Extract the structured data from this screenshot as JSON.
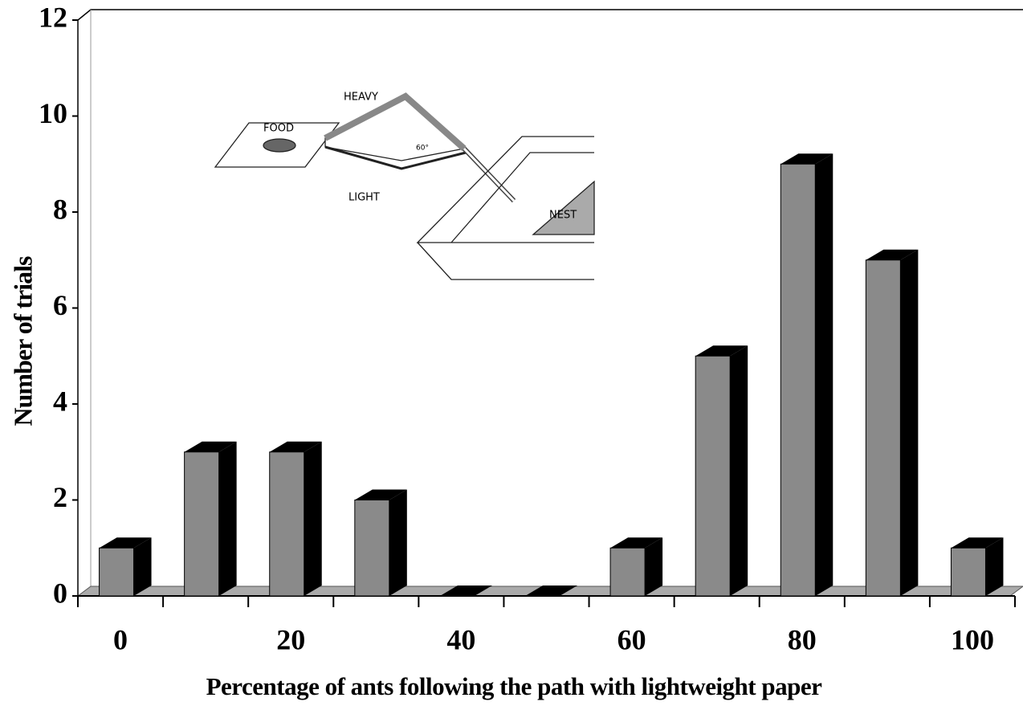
{
  "chart_data": {
    "type": "bar3d",
    "x_label": "Percentage of ants following the path with lightweight paper",
    "y_label": "Number of trials",
    "categories": [
      "0",
      null,
      "20",
      null,
      "40",
      null,
      "60",
      null,
      "80",
      null,
      "100"
    ],
    "values": [
      1,
      3,
      3,
      2,
      0,
      0,
      1,
      5,
      9,
      7,
      1
    ],
    "color": "#8a8a8a",
    "ylim": [
      0,
      12
    ],
    "yticks": [
      0,
      2,
      4,
      6,
      8,
      10,
      12
    ],
    "inset_labels": {
      "food": "FOOD",
      "heavy": "HEAVY",
      "light": "LIGHT",
      "angle": "60°",
      "nest": "NEST"
    }
  }
}
